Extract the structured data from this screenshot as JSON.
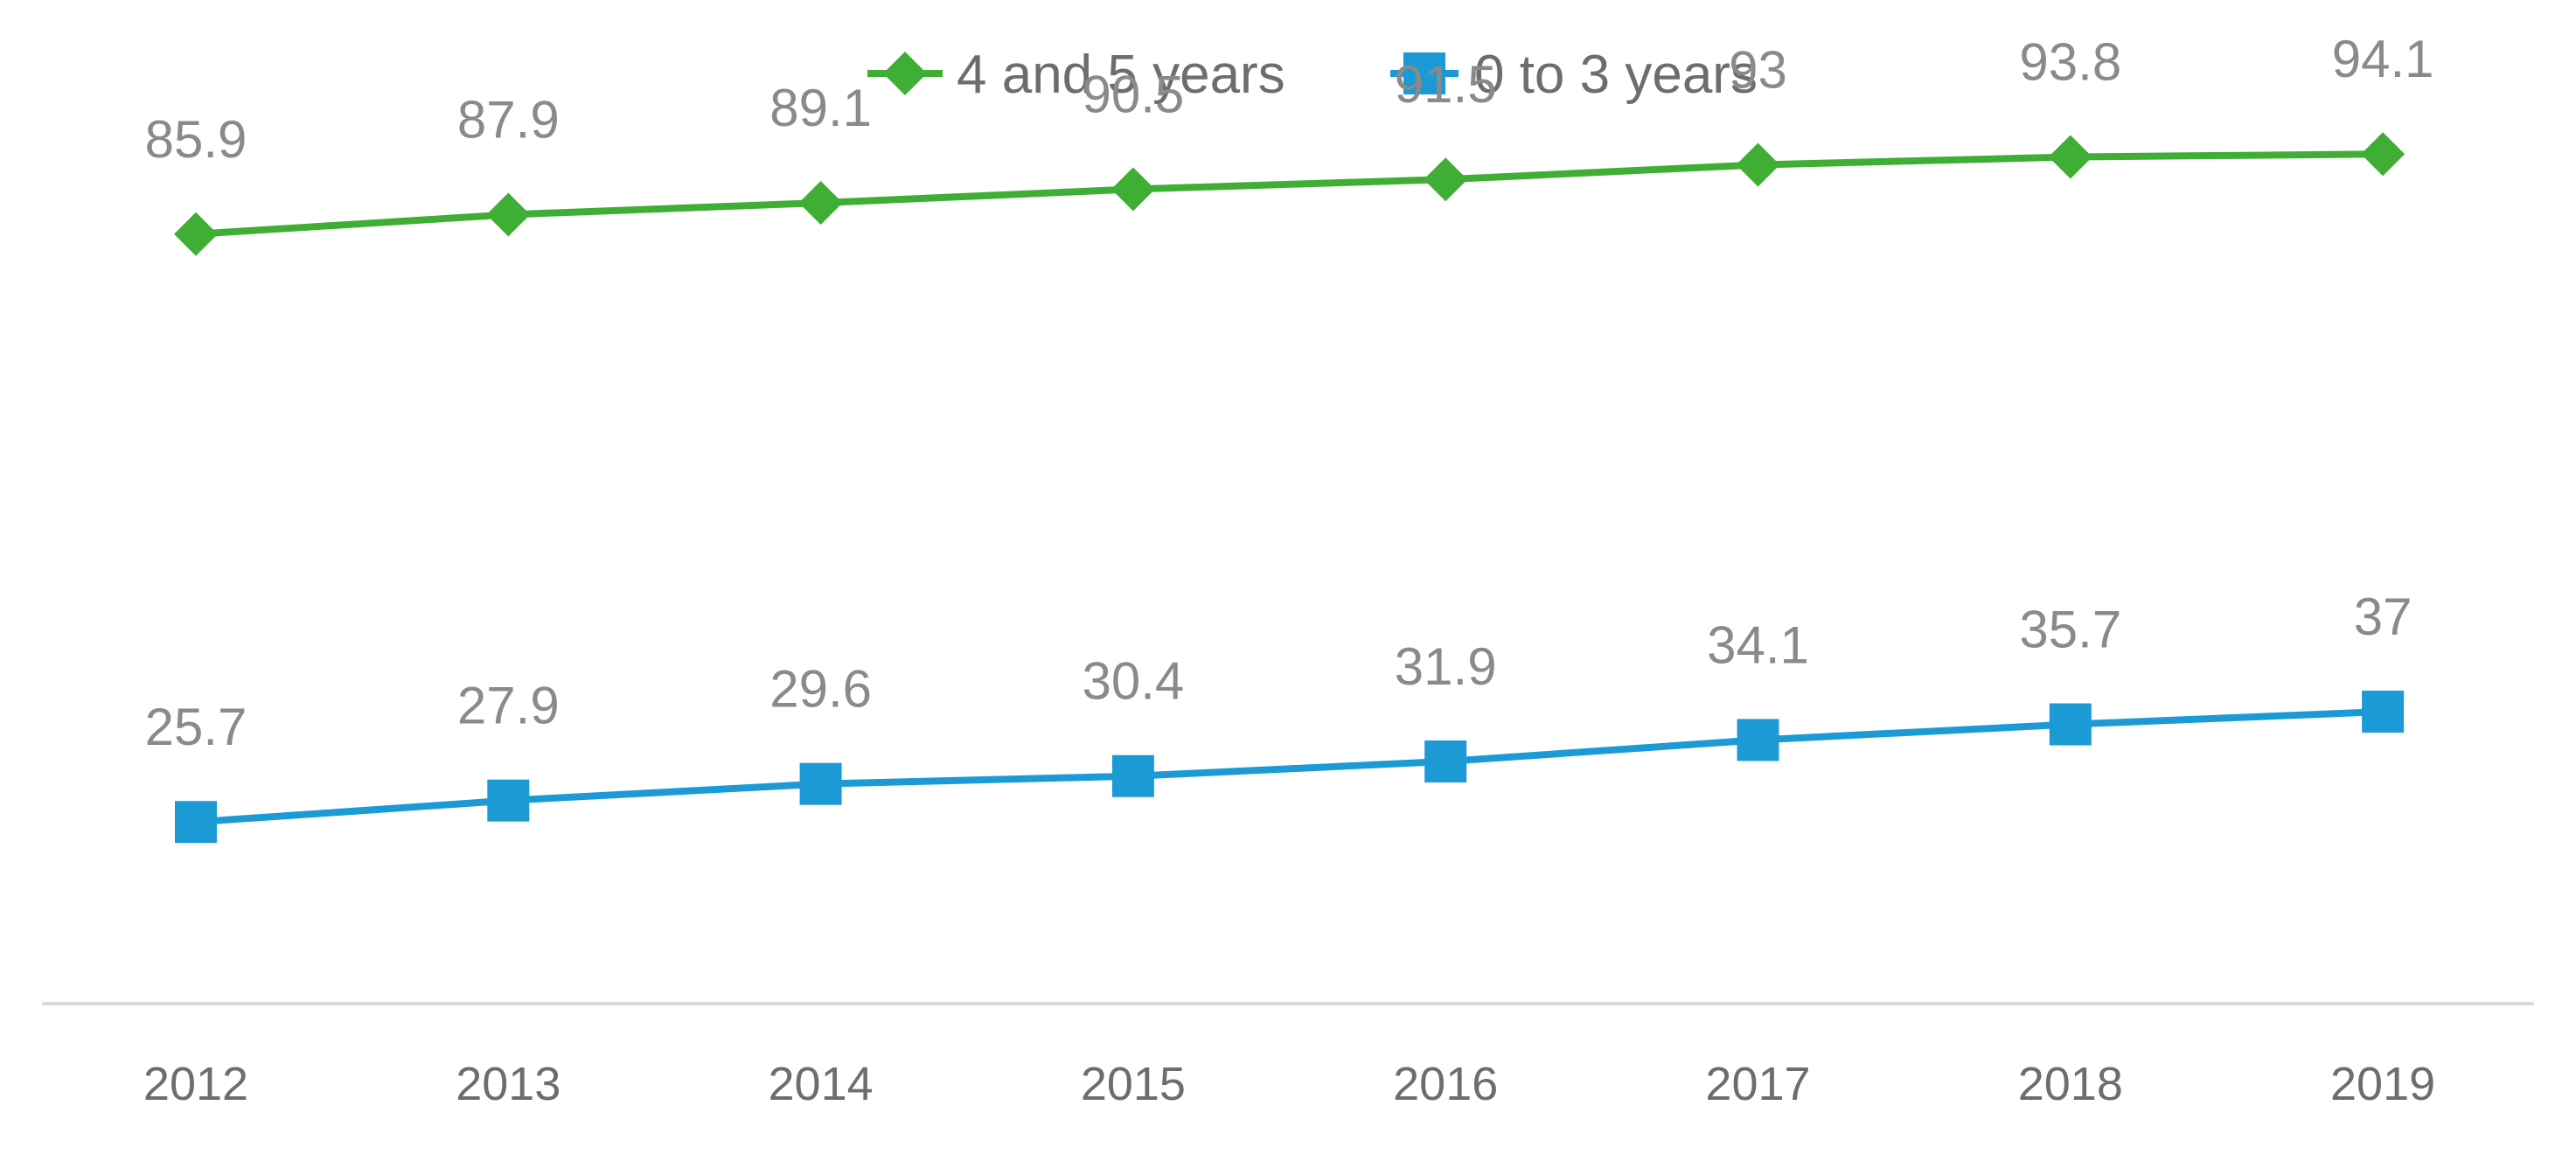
{
  "chart_data": {
    "type": "line",
    "title": "",
    "xlabel": "",
    "ylabel": "",
    "grid": false,
    "legend_position": "top-center",
    "categories": [
      "2012",
      "2013",
      "2014",
      "2015",
      "2016",
      "2017",
      "2018",
      "2019"
    ],
    "ylim": [
      0,
      100
    ],
    "series": [
      {
        "name": "4 and 5 years",
        "values": [
          85.9,
          87.9,
          89.1,
          90.5,
          91.5,
          93,
          93.8,
          94.1
        ],
        "color": "#3fae34",
        "marker": "diamond"
      },
      {
        "name": "0 to 3 years",
        "values": [
          25.7,
          27.9,
          29.6,
          30.4,
          31.9,
          34.1,
          35.7,
          37
        ],
        "color": "#1b9ad6",
        "marker": "square"
      }
    ],
    "data_labels": true
  }
}
